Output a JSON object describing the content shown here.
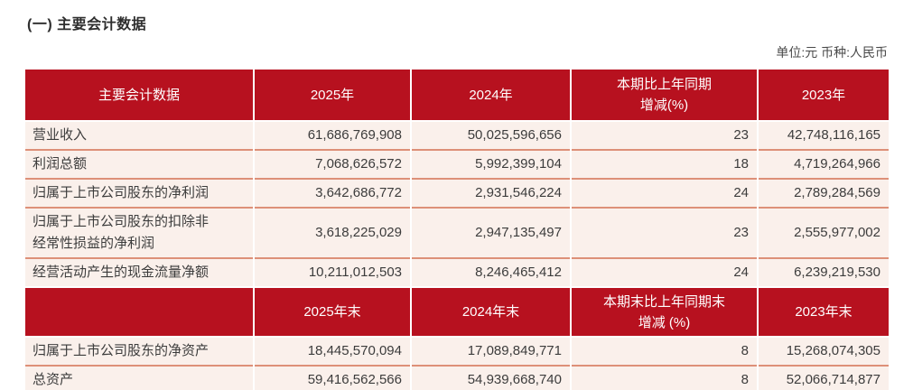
{
  "page_title": "(一) 主要会计数据",
  "unit_note": "单位:元 币种:人民币",
  "colors": {
    "header_red": "#b7111f",
    "row_pink": "#faf0eb",
    "separator_salmon": "#dd9078",
    "bottom_border_red": "#c02a18",
    "text_dark": "#3c3c3c",
    "header_text": "#ffffff"
  },
  "table": {
    "sections": [
      {
        "header": [
          "主要会计数据",
          "2025年",
          "2024年",
          "本期比上年同期\n增减(%)",
          "2023年"
        ],
        "rows": [
          {
            "label": "营业收入",
            "values": [
              "61,686,769,908",
              "50,025,596,656",
              "23",
              "42,748,116,165"
            ]
          },
          {
            "label": "利润总额",
            "values": [
              "7,068,626,572",
              "5,992,399,104",
              "18",
              "4,719,264,966"
            ]
          },
          {
            "label": "归属于上市公司股东的净利润",
            "values": [
              "3,642,686,772",
              "2,931,546,224",
              "24",
              "2,789,284,569"
            ]
          },
          {
            "label": "归属于上市公司股东的扣除非\n经常性损益的净利润",
            "values": [
              "3,618,225,029",
              "2,947,135,497",
              "23",
              "2,555,977,002"
            ]
          },
          {
            "label": "经营活动产生的现金流量净额",
            "values": [
              "10,211,012,503",
              "8,246,465,412",
              "24",
              "6,239,219,530"
            ]
          }
        ]
      },
      {
        "header": [
          "",
          "2025年末",
          "2024年末",
          "本期末比上年同期末\n增减 (%)",
          "2023年末"
        ],
        "rows": [
          {
            "label": "归属于上市公司股东的净资产",
            "values": [
              "18,445,570,094",
              "17,089,849,771",
              "8",
              "15,268,074,305"
            ]
          },
          {
            "label": "总资产",
            "values": [
              "59,416,562,566",
              "54,939,668,740",
              "8",
              "52,066,714,877"
            ]
          }
        ]
      }
    ]
  }
}
